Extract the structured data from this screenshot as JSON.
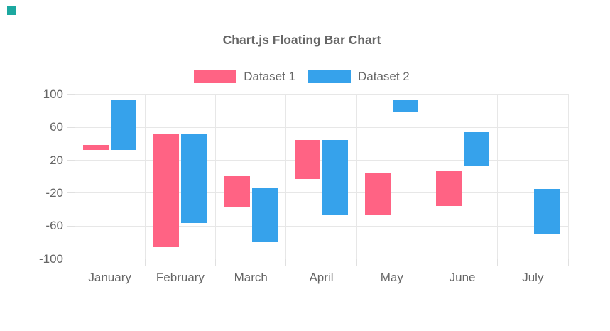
{
  "page": {
    "background": "#ffffff",
    "corner_marker_color": "#1CA8A0"
  },
  "chart_data": {
    "type": "bar",
    "subtype": "floating-bar",
    "title": "Chart.js Floating Bar Chart",
    "legend_position": "top",
    "grid": true,
    "categories": [
      "January",
      "February",
      "March",
      "April",
      "May",
      "June",
      "July"
    ],
    "series": [
      {
        "name": "Dataset 1",
        "color": "#FF6384",
        "ranges": [
          [
            33,
            39
          ],
          [
            -86,
            52
          ],
          [
            -37,
            1
          ],
          [
            -3,
            45
          ],
          [
            -46,
            4
          ],
          [
            -36,
            7
          ],
          [
            4,
            5
          ]
        ]
      },
      {
        "name": "Dataset 2",
        "color": "#36A2EB",
        "ranges": [
          [
            33,
            93
          ],
          [
            -56,
            52
          ],
          [
            -79,
            -14
          ],
          [
            -47,
            45
          ],
          [
            79,
            93
          ],
          [
            13,
            54
          ],
          [
            -70,
            -15
          ]
        ]
      }
    ],
    "ylim": [
      -100,
      100
    ],
    "y_ticks": [
      100,
      60,
      20,
      -20,
      -60,
      -100
    ],
    "xlabel": "",
    "ylabel": ""
  }
}
